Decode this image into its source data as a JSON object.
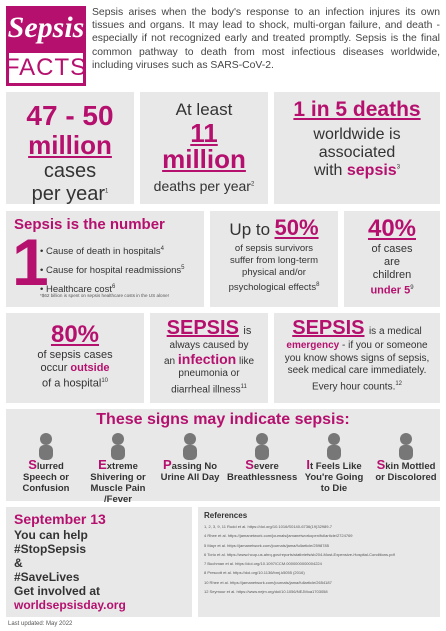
{
  "logo": {
    "top": "Sepsis",
    "bottom": "FACTS"
  },
  "intro": "Sepsis arises when the body's response to an infection injures its own tissues and organs. It may lead to shock, multi-organ failure, and death - especially if not recognized early and treated promptly. Sepsis is the final common pathway to death from most infectious diseases worldwide, including viruses such as SARS-CoV-2.",
  "stat1": {
    "num": "47 - 50",
    "unit": "million",
    "l1": "cases",
    "l2": "per year",
    "ref": "1"
  },
  "stat2": {
    "pre": "At least",
    "num": "11",
    "unit": "million",
    "l1": "deaths per year",
    "ref": "2"
  },
  "stat3": {
    "num": "1 in 5 deaths",
    "l1": "worldwide is",
    "l2": "associated",
    "l3": "with",
    "word": "sepsis",
    "ref": "3"
  },
  "number": {
    "title": "Sepsis is the number",
    "digit": "1",
    "items": [
      {
        "t": "Cause of death in hospitals",
        "ref": "4"
      },
      {
        "t": "Cause for hospital readmissions",
        "ref": "5"
      },
      {
        "t": "Healthcare cost",
        "ref": "6"
      }
    ],
    "note": "*$62 billion is spent on sepsis healthcare costs in the US alone!"
  },
  "survivors": {
    "pre": "Up to",
    "num": "50%",
    "l1": "of sepsis survivors",
    "l2": "suffer from long-term",
    "l3": "physical and/or",
    "l4": "psychological effects",
    "ref": "8"
  },
  "children": {
    "num": "40%",
    "l1": "of cases",
    "l2": "are",
    "l3": "children",
    "word": "under 5",
    "ref": "9"
  },
  "outside": {
    "num": "80%",
    "l1": "of sepsis cases",
    "l2": "occur",
    "word": "outside",
    "l3": "of a hospital",
    "ref": "10"
  },
  "infection": {
    "title": "SEPSIS",
    "l1": "is",
    "l2": "always caused by",
    "l3": "an",
    "word": "infection",
    "l4": "like",
    "l5": "pneumonia or",
    "l6": "diarrheal illness",
    "ref": "11"
  },
  "emergency": {
    "title": "SEPSIS",
    "l1": "is a medical",
    "word": "emergency",
    "l2": "- if you or someone",
    "l3": "you know shows signs of sepsis,",
    "l4": "seek medical care immediately.",
    "l5": "Every hour counts.",
    "ref": "12"
  },
  "signs_title": "These signs may indicate sepsis:",
  "signs": [
    {
      "cap": "S",
      "rest": "lurred Speech or Confusion"
    },
    {
      "cap": "E",
      "rest": "xtreme Shivering or Muscle Pain /Fever"
    },
    {
      "cap": "P",
      "rest": "assing No Urine All Day"
    },
    {
      "cap": "S",
      "rest": "evere Breathlessness"
    },
    {
      "cap": "I",
      "rest": "t Feels Like You're Going to Die"
    },
    {
      "cap": "S",
      "rest": "kin Mottled or Discolored"
    }
  ],
  "cta": {
    "date": "September 13",
    "l1": "You can help",
    "tag1": "#StopSepsis",
    "and": "&",
    "tag2": "#SaveLives",
    "l2": "Get involved at",
    "url": "worldsepsisday.org"
  },
  "refs_title": "References",
  "refs": [
    "1, 2, 3, 9, 11 Rudd et al. https://doi.org/10.1016/S0140-6736(19)32989-7",
    "4 Rhee et al. https://jamanetwork.com/journals/jamanetworkopen/fullarticle/2724769",
    "5 Mayr et al. https://jamanetwork.com/journals/jama/fullarticle/2598785",
    "6 Torio et al. https://www.hcup-us.ahrq.gov/reports/statbriefs/sb204-Most-Expensive-Hospital-Conditions.pdf",
    "7 Buchman et al. https://doi.org/10.1097/CCM.0000000000004224",
    "8 Prescott et al. https://doi.org/10.1136/bmj.k5055 (2016)",
    "10 Rhee et al. https://jamanetwork.com/journals/jama/fullarticle/2654187",
    "12 Seymour et al. https://www.nejm.org/doi/10.1056/NEJMoa1703058"
  ],
  "updated": "Last updated: May 2022"
}
